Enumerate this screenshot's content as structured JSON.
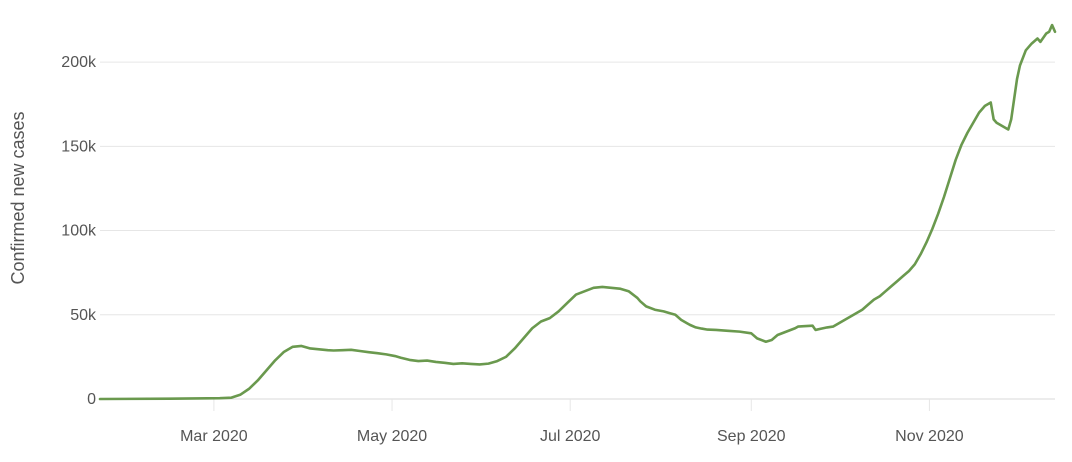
{
  "chart_data": {
    "type": "line",
    "title": "",
    "xlabel": "",
    "ylabel": "Confirmed new cases",
    "xlim": [
      "2020-01-22",
      "2020-12-14"
    ],
    "ylim": [
      0,
      225000
    ],
    "grid": true,
    "legend": "none",
    "colors": {
      "line": "#6a994e",
      "grid": "#e6e6e6",
      "text": "#555555"
    },
    "x_ticks": [
      {
        "value": "2020-03-01",
        "label": "Mar 2020"
      },
      {
        "value": "2020-05-01",
        "label": "May 2020"
      },
      {
        "value": "2020-07-01",
        "label": "Jul 2020"
      },
      {
        "value": "2020-09-01",
        "label": "Sep 2020"
      },
      {
        "value": "2020-11-01",
        "label": "Nov 2020"
      }
    ],
    "y_ticks": [
      {
        "value": 0,
        "label": "0"
      },
      {
        "value": 50000,
        "label": "50k"
      },
      {
        "value": 100000,
        "label": "100k"
      },
      {
        "value": 150000,
        "label": "150k"
      },
      {
        "value": 200000,
        "label": "200k"
      }
    ],
    "series": [
      {
        "x": [
          "2020-01-22",
          "2020-02-15",
          "2020-03-03",
          "2020-03-07",
          "2020-03-10",
          "2020-03-13",
          "2020-03-16",
          "2020-03-19",
          "2020-03-22",
          "2020-03-25",
          "2020-03-28",
          "2020-03-31",
          "2020-04-03",
          "2020-04-06",
          "2020-04-09",
          "2020-04-11",
          "2020-04-14",
          "2020-04-17",
          "2020-04-20",
          "2020-04-23",
          "2020-04-26",
          "2020-04-29",
          "2020-05-02",
          "2020-05-04",
          "2020-05-07",
          "2020-05-10",
          "2020-05-13",
          "2020-05-16",
          "2020-05-19",
          "2020-05-22",
          "2020-05-25",
          "2020-05-28",
          "2020-05-31",
          "2020-06-03",
          "2020-06-06",
          "2020-06-09",
          "2020-06-12",
          "2020-06-15",
          "2020-06-18",
          "2020-06-21",
          "2020-06-24",
          "2020-06-27",
          "2020-06-30",
          "2020-07-03",
          "2020-07-06",
          "2020-07-09",
          "2020-07-12",
          "2020-07-15",
          "2020-07-18",
          "2020-07-21",
          "2020-07-24",
          "2020-07-25",
          "2020-07-27",
          "2020-07-30",
          "2020-08-02",
          "2020-08-04",
          "2020-08-06",
          "2020-08-08",
          "2020-08-10",
          "2020-08-11",
          "2020-08-13",
          "2020-08-15",
          "2020-08-17",
          "2020-08-20",
          "2020-08-24",
          "2020-08-28",
          "2020-09-01",
          "2020-09-03",
          "2020-09-06",
          "2020-09-08",
          "2020-09-10",
          "2020-09-13",
          "2020-09-16",
          "2020-09-17",
          "2020-09-19",
          "2020-09-22",
          "2020-09-23",
          "2020-09-25",
          "2020-09-27",
          "2020-09-29",
          "2020-10-01",
          "2020-10-03",
          "2020-10-05",
          "2020-10-07",
          "2020-10-09",
          "2020-10-11",
          "2020-10-13",
          "2020-10-15",
          "2020-10-17",
          "2020-10-19",
          "2020-10-21",
          "2020-10-23",
          "2020-10-25",
          "2020-10-27",
          "2020-10-29",
          "2020-10-31",
          "2020-11-02",
          "2020-11-04",
          "2020-11-06",
          "2020-11-08",
          "2020-11-10",
          "2020-11-12",
          "2020-11-14",
          "2020-11-16",
          "2020-11-18",
          "2020-11-20",
          "2020-11-22",
          "2020-11-23",
          "2020-11-24",
          "2020-11-26",
          "2020-11-28",
          "2020-11-29",
          "2020-11-30",
          "2020-12-01",
          "2020-12-02",
          "2020-12-04",
          "2020-12-06",
          "2020-12-08",
          "2020-12-09",
          "2020-12-11",
          "2020-12-12",
          "2020-12-13",
          "2020-12-14"
        ],
        "values": [
          0,
          200,
          500,
          800,
          2500,
          6000,
          11000,
          17000,
          23000,
          28000,
          31000,
          31500,
          30000,
          29500,
          29000,
          28800,
          29000,
          29200,
          28500,
          27800,
          27200,
          26500,
          25500,
          24500,
          23200,
          22500,
          22800,
          22000,
          21500,
          20800,
          21200,
          20800,
          20500,
          21000,
          22500,
          25000,
          30000,
          36000,
          42000,
          46000,
          48000,
          52000,
          57000,
          62000,
          64000,
          66000,
          66500,
          66000,
          65500,
          64000,
          60000,
          58000,
          55000,
          53000,
          52000,
          51000,
          50000,
          47000,
          45000,
          44000,
          42500,
          41800,
          41200,
          41000,
          40500,
          40000,
          39000,
          36000,
          34000,
          35000,
          38000,
          40000,
          42000,
          43000,
          43200,
          43500,
          41000,
          41800,
          42500,
          43000,
          45000,
          47000,
          49000,
          51000,
          53000,
          56000,
          59000,
          61000,
          64000,
          67000,
          70000,
          73000,
          76000,
          80000,
          86000,
          93000,
          101000,
          110000,
          120000,
          131000,
          142000,
          151000,
          158000,
          164000,
          170000,
          174000,
          176000,
          166000,
          164000,
          162000,
          160000,
          166000,
          178000,
          190000,
          198000,
          207000,
          211000,
          214000,
          212000,
          217000,
          218000,
          222000,
          218000
        ]
      }
    ]
  }
}
